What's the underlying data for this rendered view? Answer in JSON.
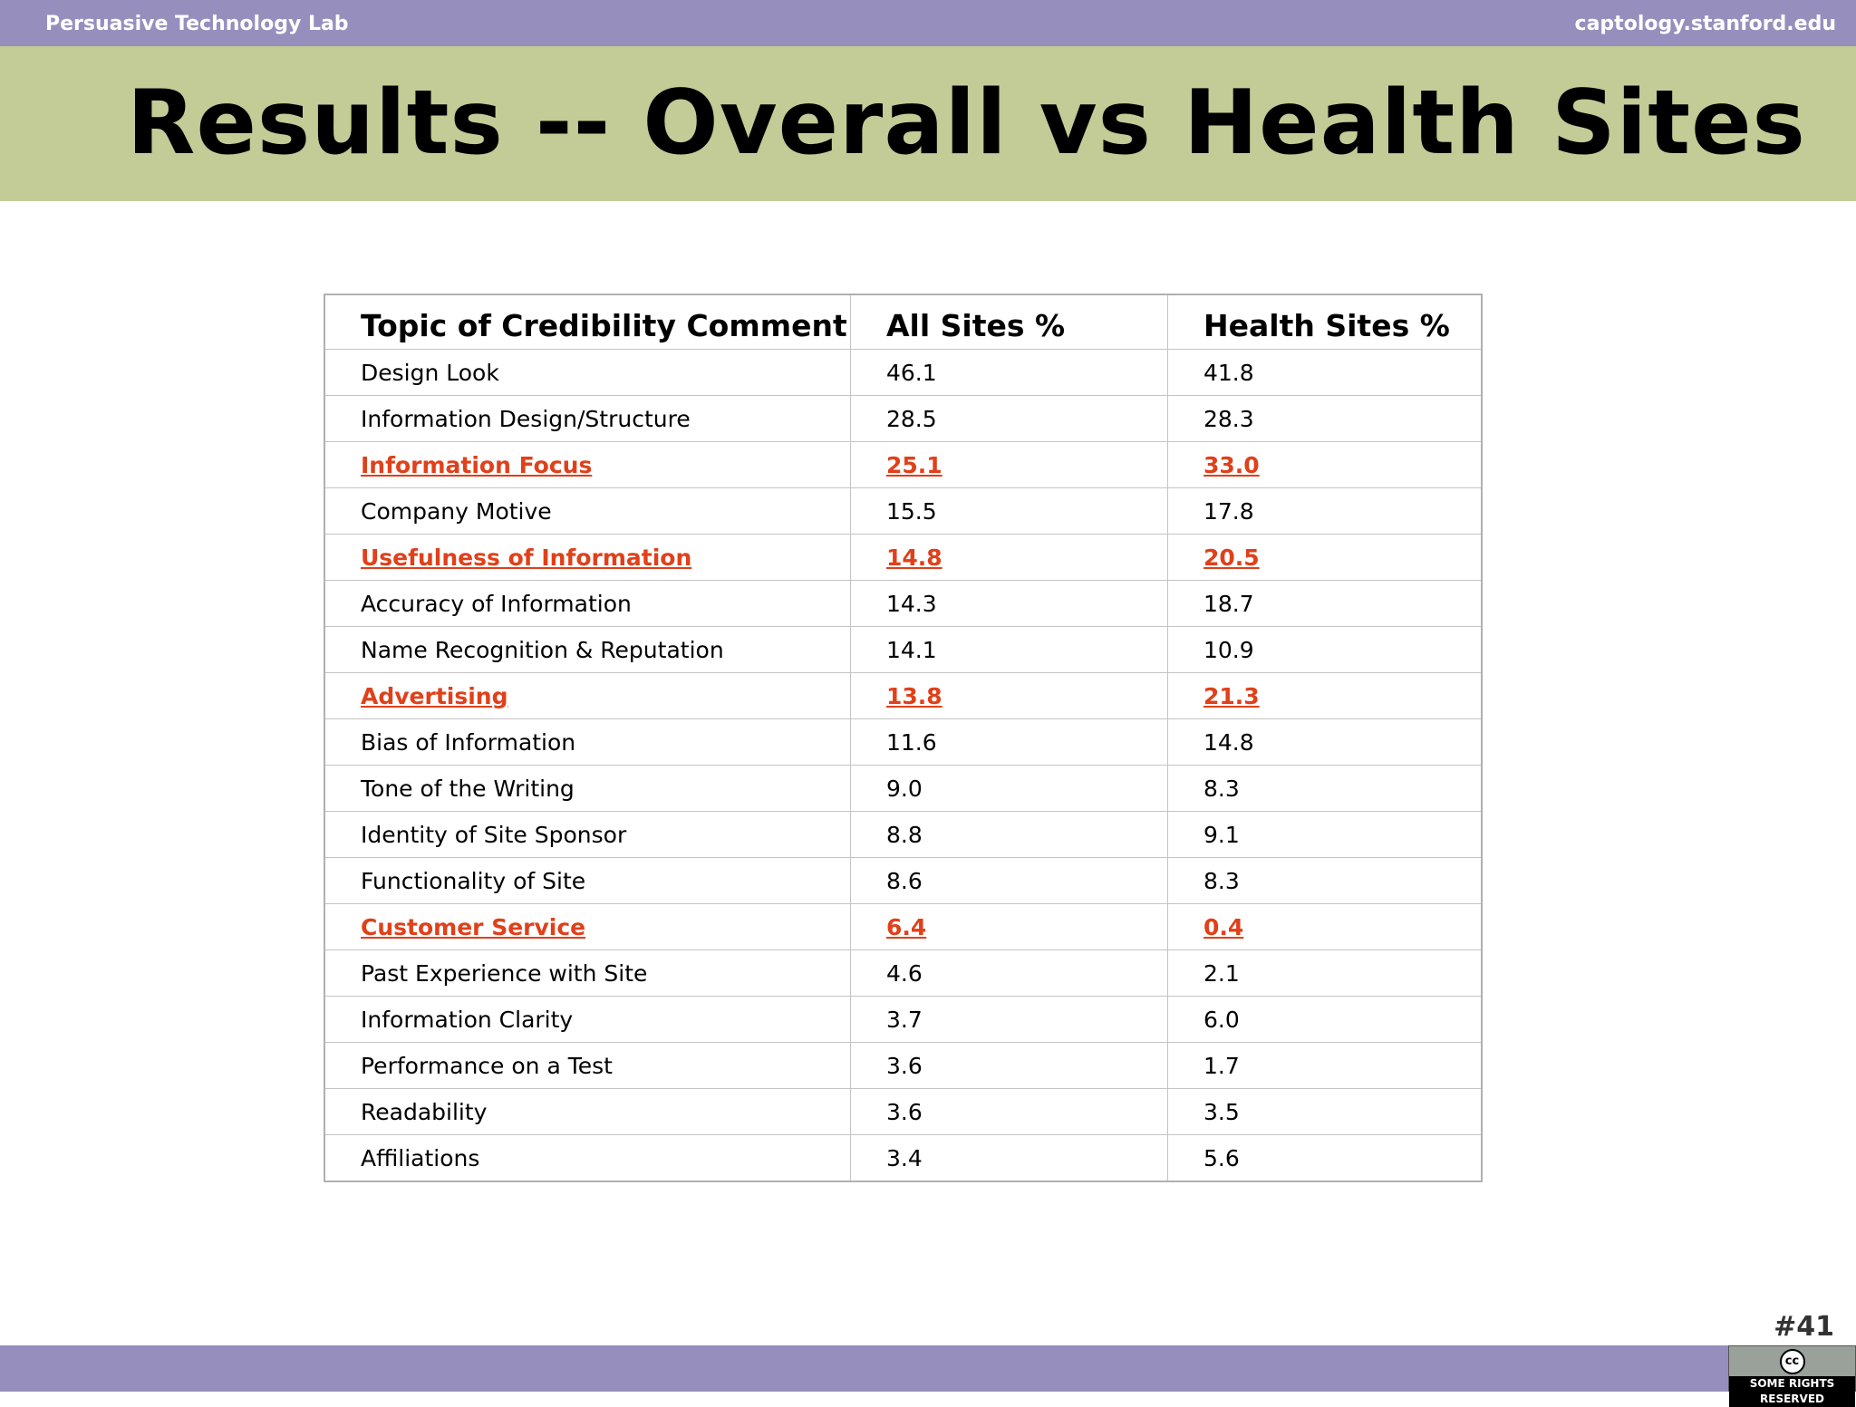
{
  "header": {
    "left": "Persuasive Technology Lab",
    "right": "captology.stanford.edu"
  },
  "title": "Results -- Overall vs Health Sites",
  "table": {
    "columns": [
      "Topic of Credibility Comment",
      "All Sites %",
      "Health Sites %"
    ],
    "rows": [
      {
        "cells": [
          "Design Look",
          "46.1",
          "41.8"
        ]
      },
      {
        "cells": [
          "Information Design/Structure",
          "28.5",
          "28.3"
        ]
      },
      {
        "cells": [
          "Information Focus",
          "25.1",
          "33.0"
        ],
        "color": "#e0401a"
      },
      {
        "cells": [
          "Company Motive",
          "15.5",
          "17.8"
        ]
      },
      {
        "cells": [
          "Usefulness of Information",
          "14.8",
          "20.5"
        ],
        "color": "#e0401a"
      },
      {
        "cells": [
          "Accuracy of Information",
          "14.3",
          "18.7"
        ]
      },
      {
        "cells": [
          "Name Recognition & Reputation",
          "14.1",
          "10.9"
        ]
      },
      {
        "cells": [
          "Advertising",
          "13.8",
          "21.3"
        ],
        "color": "#e0401a"
      },
      {
        "cells": [
          "Bias of Information",
          "11.6",
          "14.8"
        ]
      },
      {
        "cells": [
          "Tone of the Writing",
          "9.0",
          "8.3"
        ]
      },
      {
        "cells": [
          "Identity of Site Sponsor",
          "8.8",
          "9.1"
        ]
      },
      {
        "cells": [
          "Functionality of Site",
          "8.6",
          "8.3"
        ]
      },
      {
        "cells": [
          "Customer Service",
          "6.4",
          "0.4"
        ],
        "color": "#e0401a"
      },
      {
        "cells": [
          "Past Experience with Site",
          "4.6",
          "2.1"
        ]
      },
      {
        "cells": [
          "Information Clarity",
          "3.7",
          "6.0"
        ]
      },
      {
        "cells": [
          "Performance on a Test",
          "3.6",
          "1.7"
        ]
      },
      {
        "cells": [
          "Readability",
          "3.6",
          "3.5"
        ]
      },
      {
        "cells": [
          "Affiliations",
          "3.4",
          "5.6"
        ]
      }
    ]
  },
  "footer": {
    "slide_number": "#41",
    "badge_symbol": "cc",
    "badge_text": "SOME RIGHTS RESERVED"
  }
}
